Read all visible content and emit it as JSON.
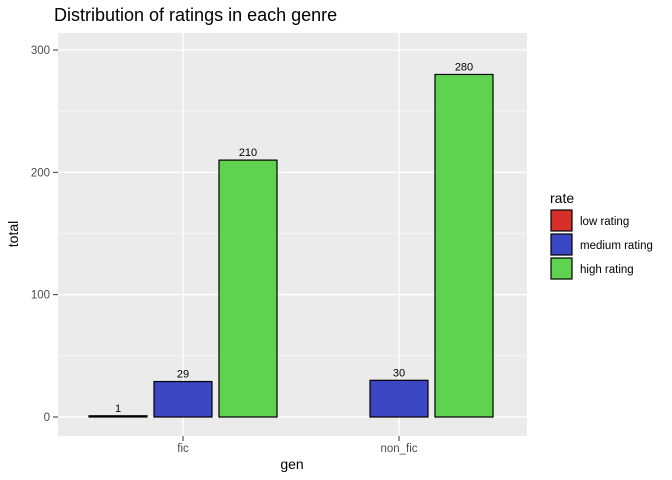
{
  "chart_data": {
    "type": "bar",
    "title": "Distribution of ratings in each genre",
    "xlabel": "gen",
    "ylabel": "total",
    "categories": [
      "fic",
      "non_fic"
    ],
    "ylim": [
      0,
      300
    ],
    "yticks": [
      0,
      100,
      200,
      300
    ],
    "grid": true,
    "legend": {
      "title": "rate",
      "placement": "right"
    },
    "series": [
      {
        "name": "low rating",
        "color": "#d7302a",
        "values": [
          1,
          null
        ]
      },
      {
        "name": "medium rating",
        "color": "#3b46c3",
        "values": [
          29,
          30
        ]
      },
      {
        "name": "high rating",
        "color": "#5fd350",
        "values": [
          210,
          280
        ]
      }
    ]
  }
}
